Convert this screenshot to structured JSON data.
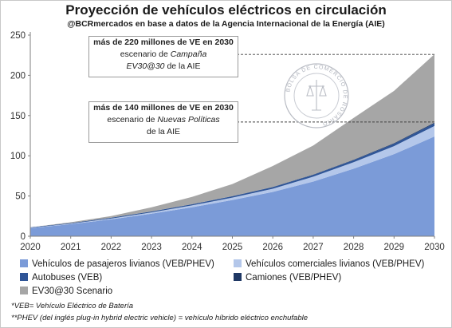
{
  "title": "Proyección de vehículos eléctricos en circulación",
  "subtitle": "@BCRmercados en base a datos de la Agencia Internacional de la Energía (AIE)",
  "callouts": {
    "top": {
      "line1": "más de 220 millones de VE en 2030",
      "line2_prefix": "escenario de ",
      "line2_italic": "Campaña",
      "line3_italic": "EV30@30",
      "line3_suffix": " de la AIE"
    },
    "bottom": {
      "line1": "más de 140 millones de VE en 2030",
      "line2_prefix": "escenario de ",
      "line2_italic": "Nuevas Políticas",
      "line3": "de la AIE"
    }
  },
  "watermark": {
    "text": "BOLSA DE COMERCIO DE ROSARIO"
  },
  "footnotes": [
    "*VEB= Vehículo Eléctrico de Batería",
    "**PHEV (del inglés plug-in hybrid electric vehicle) = vehículo híbrido eléctrico enchufable"
  ],
  "chart_data": {
    "type": "area",
    "stacked": true,
    "x": [
      2020,
      2021,
      2022,
      2023,
      2024,
      2025,
      2026,
      2027,
      2028,
      2029,
      2030
    ],
    "ylim": [
      0,
      250
    ],
    "yticks": [
      0,
      50,
      100,
      150,
      200,
      250
    ],
    "grid": false,
    "legend_position": "bottom",
    "colors": {
      "pasajeros": "#7b9bd8",
      "comerciales": "#b4c7ea",
      "autobuses": "#2f5597",
      "camiones": "#1f3864",
      "ev3030": "#a6a6a6"
    },
    "series": [
      {
        "key": "pasajeros",
        "name": "Vehículos de pasajeros livianos (VEB/PHEV)",
        "values": [
          10,
          15,
          21,
          28,
          36,
          45,
          55,
          68,
          84,
          102,
          124
        ]
      },
      {
        "key": "comerciales",
        "name": "Vehículos comerciales livianos (VEB/PHEV)",
        "values": [
          0.4,
          0.6,
          1,
          1.6,
          2.3,
          3,
          4,
          6,
          8,
          10,
          13
        ]
      },
      {
        "key": "autobuses",
        "name": "Autobuses (VEB)",
        "values": [
          0.6,
          0.8,
          1,
          1.2,
          1.4,
          1.7,
          2,
          2.3,
          2.6,
          3,
          3.3
        ]
      },
      {
        "key": "camiones",
        "name": "Camiones (VEB/PHEV)",
        "values": [
          0,
          0,
          0.05,
          0.1,
          0.15,
          0.2,
          0.3,
          0.4,
          0.5,
          0.7,
          0.9
        ]
      },
      {
        "key": "ev3030",
        "name": "EV30@30 Scenario",
        "values": [
          0,
          1,
          2,
          5,
          9,
          15,
          26,
          36,
          52,
          65,
          85
        ]
      }
    ],
    "reference_lines": [
      {
        "label": "callout-top",
        "y": 226
      },
      {
        "label": "callout-bottom",
        "y": 142
      }
    ]
  }
}
